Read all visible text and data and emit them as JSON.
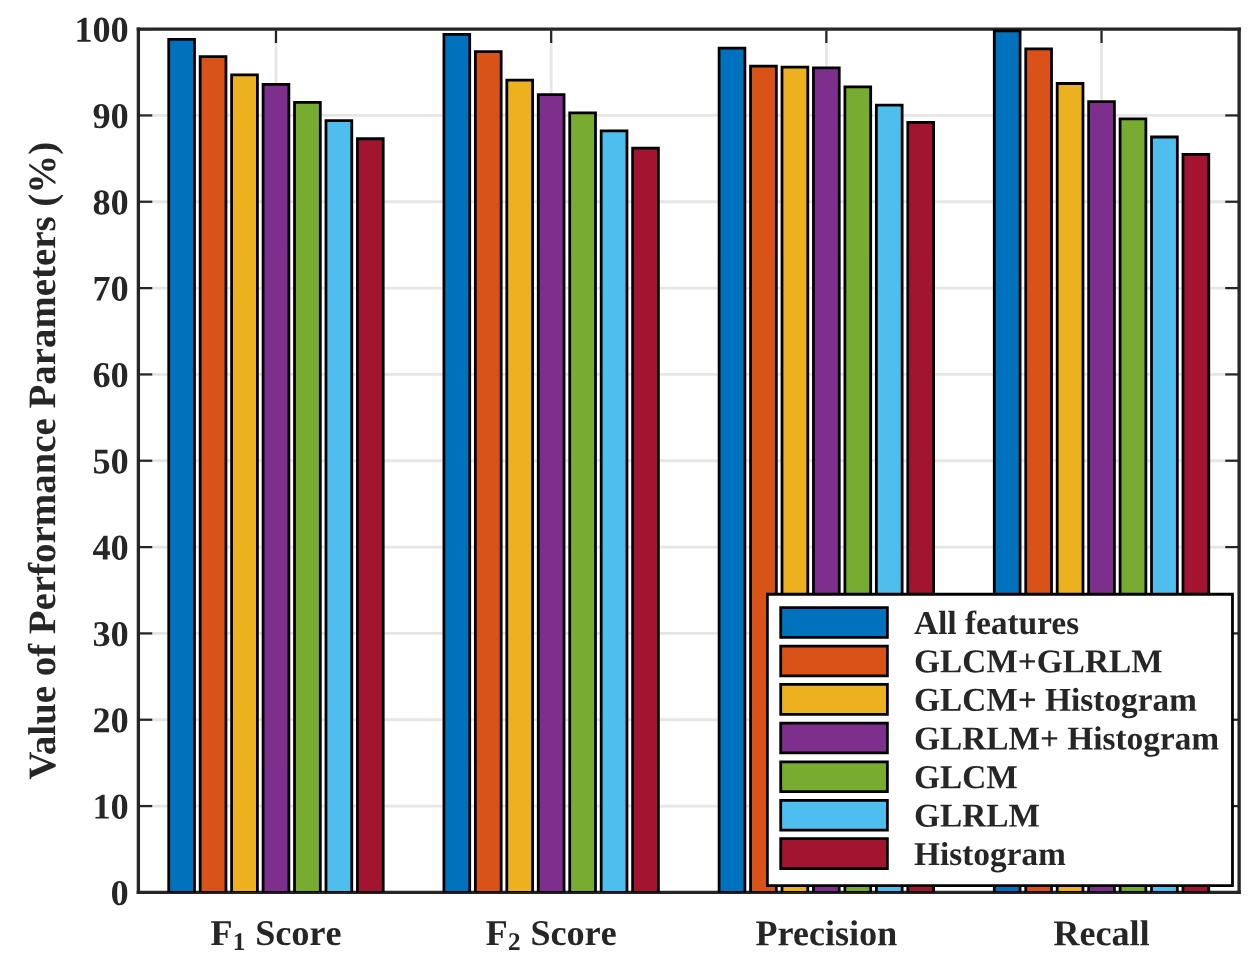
{
  "chart_data": {
    "type": "bar",
    "ylabel": "Value of Performance Parameters (%)",
    "categories": [
      "F$_{1}$ Score",
      "F$_{2}$ Score",
      "Precision",
      "Recall"
    ],
    "series": [
      {
        "name": "All features",
        "color": "#0072bd",
        "values": [
          98.8,
          99.4,
          97.8,
          99.8
        ]
      },
      {
        "name": "GLCM+GLRLM",
        "color": "#d95319",
        "values": [
          96.8,
          97.4,
          95.7,
          97.7
        ]
      },
      {
        "name": "GLCM+ Histogram",
        "color": "#edb120",
        "values": [
          94.7,
          94.1,
          95.6,
          93.7
        ]
      },
      {
        "name": "GLRLM+ Histogram",
        "color": "#7e2f8e",
        "values": [
          93.6,
          92.4,
          95.5,
          91.6
        ]
      },
      {
        "name": "GLCM",
        "color": "#77ac30",
        "values": [
          91.5,
          90.3,
          93.3,
          89.6
        ]
      },
      {
        "name": "GLRLM",
        "color": "#4dbeee",
        "values": [
          89.4,
          88.2,
          91.2,
          87.5
        ]
      },
      {
        "name": "Histogram",
        "color": "#a2142f",
        "values": [
          87.3,
          86.2,
          89.2,
          85.5
        ]
      }
    ],
    "ylim": [
      0,
      100
    ],
    "yticks": [
      0,
      10,
      20,
      30,
      40,
      50,
      60,
      70,
      80,
      90,
      100
    ],
    "grid": true,
    "legend": "bottom right"
  }
}
